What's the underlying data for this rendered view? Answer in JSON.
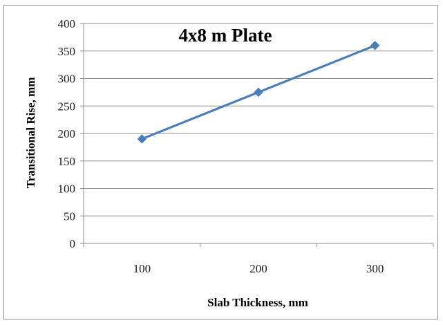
{
  "chart_data": {
    "type": "line",
    "title": "4x8 m Plate",
    "xlabel": "Slab Thickness, mm",
    "ylabel": "Transitional Rise, mm",
    "categories": [
      "100",
      "200",
      "300"
    ],
    "series": [
      {
        "values": [
          190,
          275,
          360
        ],
        "color": "#4a7ebb",
        "marker": "diamond"
      }
    ],
    "ylim": [
      0,
      400
    ],
    "yticks": [
      0,
      50,
      100,
      150,
      200,
      250,
      300,
      350,
      400
    ],
    "grid": true,
    "legend": "none"
  }
}
